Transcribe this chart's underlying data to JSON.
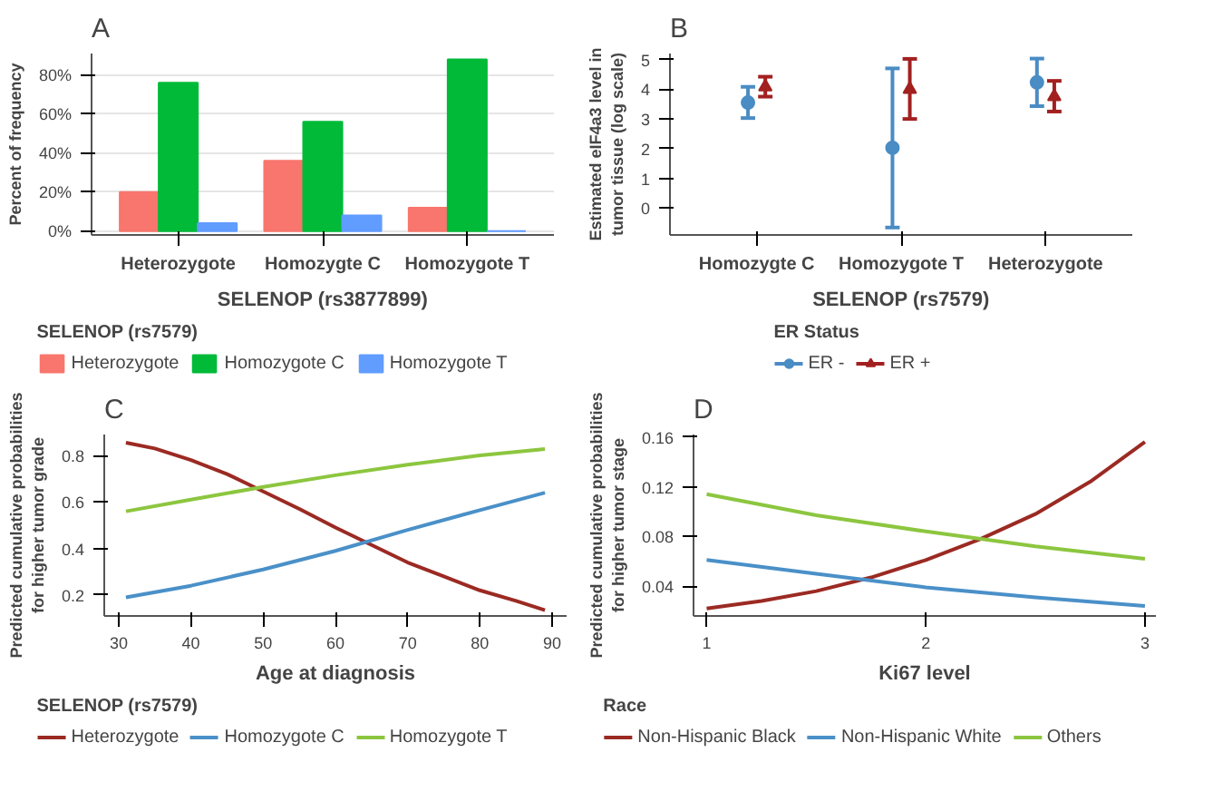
{
  "chart_data": [
    {
      "type": "bar",
      "title": "A",
      "categories": [
        "Heterozygote",
        "Homozygte C",
        "Homozygote T"
      ],
      "xlabel": "SELENOP (rs3877899)",
      "ylabel": "Percent of frequency",
      "legend_title": "SELENOP (rs7579)",
      "legend": "bottom",
      "grid": "y",
      "ylim": [
        -2,
        91
      ],
      "yticks": [
        {
          "value": 0,
          "label": "0%"
        },
        {
          "value": 20,
          "label": "20%"
        },
        {
          "value": 40,
          "label": "40%"
        },
        {
          "value": 60,
          "label": "60%"
        },
        {
          "value": 80,
          "label": "80%"
        }
      ],
      "series": [
        {
          "name": "Heterozygote",
          "color": "#f8766d",
          "values": [
            20,
            36,
            12
          ]
        },
        {
          "name": "Homozygote C",
          "color": "#00ba38",
          "values": [
            76,
            56,
            88
          ]
        },
        {
          "name": "Homozygote T",
          "color": "#619cff",
          "values": [
            4,
            8,
            0
          ]
        }
      ]
    },
    {
      "type": "scatter",
      "title": "B",
      "categories": [
        "Homozygte C",
        "Homozygote T",
        "Heterozygote"
      ],
      "xlabel": "SELENOP (rs7579)",
      "ylabel": "Estimated eIF4a3 level in\ntumor tissue (log scale)",
      "legend_title": "ER Status",
      "legend": "bottom",
      "grid": false,
      "ylim": [
        -0.9,
        5.2
      ],
      "yticks": [
        0,
        1,
        2,
        3,
        4,
        5
      ],
      "series": [
        {
          "name": "ER -",
          "color": "#4a8cc4",
          "marker": "circle",
          "values": [
            3.55,
            2.03,
            4.23
          ],
          "errors": [
            [
              3.03,
              4.08
            ],
            [
              -0.65,
              4.7
            ],
            [
              3.43,
              5.03
            ]
          ]
        },
        {
          "name": "ER +",
          "color": "#a32020",
          "marker": "triangle",
          "values": [
            4.08,
            4.0,
            3.75
          ],
          "errors": [
            [
              3.75,
              4.42
            ],
            [
              3.0,
              5.02
            ],
            [
              3.25,
              4.28
            ]
          ]
        }
      ]
    },
    {
      "type": "line",
      "title": "C",
      "xlabel": "Age at diagnosis",
      "ylabel": "Predicted cumulative probabilities\nfor higher tumor grade",
      "legend_title": "SELENOP (rs7579)",
      "legend": "bottom",
      "grid": false,
      "xlim": [
        28,
        92
      ],
      "xticks": [
        30,
        40,
        50,
        60,
        70,
        80,
        90
      ],
      "ylim": [
        0.11,
        0.89
      ],
      "yticks": [
        0.2,
        0.4,
        0.6,
        0.8
      ],
      "series": [
        {
          "name": "Heterozygote",
          "color": "#9b2a23",
          "x": [
            31,
            35,
            40,
            45,
            50,
            55,
            60,
            65,
            70,
            75,
            80,
            85,
            89
          ],
          "values": [
            0.855,
            0.83,
            0.78,
            0.72,
            0.645,
            0.57,
            0.49,
            0.415,
            0.34,
            0.28,
            0.22,
            0.175,
            0.135
          ]
        },
        {
          "name": "Homozygote C",
          "color": "#4a90c8",
          "x": [
            31,
            40,
            50,
            60,
            70,
            80,
            89
          ],
          "values": [
            0.19,
            0.24,
            0.31,
            0.39,
            0.48,
            0.565,
            0.64
          ]
        },
        {
          "name": "Homozygote T",
          "color": "#8cc63f",
          "x": [
            31,
            40,
            50,
            60,
            70,
            80,
            89
          ],
          "values": [
            0.56,
            0.61,
            0.665,
            0.715,
            0.76,
            0.8,
            0.828
          ]
        }
      ]
    },
    {
      "type": "line",
      "title": "D",
      "xlabel": "Ki67 level",
      "ylabel": "Predicted cumulative probabilities\nfor higher tumor stage",
      "legend_title": "Race",
      "legend": "bottom",
      "grid": false,
      "xlim": [
        0.94,
        3.05
      ],
      "xticks": [
        1,
        2,
        3
      ],
      "ylim": [
        0.016,
        0.162
      ],
      "yticks": [
        0.04,
        0.08,
        0.12,
        0.16
      ],
      "series": [
        {
          "name": "Non-Hispanic Black",
          "color": "#9b2a23",
          "x": [
            1,
            1.25,
            1.5,
            1.75,
            2,
            2.25,
            2.5,
            2.75,
            3
          ],
          "values": [
            0.022,
            0.028,
            0.036,
            0.047,
            0.061,
            0.078,
            0.098,
            0.124,
            0.156
          ]
        },
        {
          "name": "Non-Hispanic White",
          "color": "#4a90c8",
          "x": [
            1,
            1.5,
            2,
            2.5,
            3
          ],
          "values": [
            0.061,
            0.05,
            0.039,
            0.031,
            0.024
          ]
        },
        {
          "name": "Others",
          "color": "#8cc63f",
          "x": [
            1,
            1.5,
            2,
            2.5,
            3
          ],
          "values": [
            0.114,
            0.097,
            0.084,
            0.072,
            0.062
          ]
        }
      ]
    }
  ]
}
